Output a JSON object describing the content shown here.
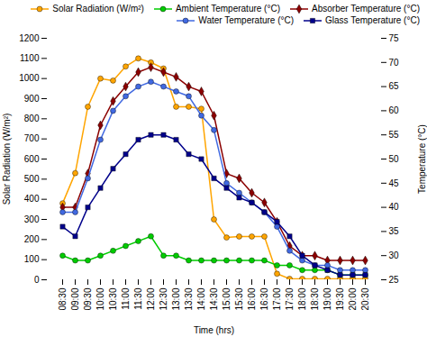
{
  "chart_data": {
    "type": "line",
    "categories": [
      "08:30",
      "09:00",
      "09:30",
      "10:00",
      "10:30",
      "11:00",
      "11:30",
      "12:00",
      "12:30",
      "13:00",
      "13:30",
      "14:00",
      "14:30",
      "15:00",
      "15:30",
      "16:00",
      "16:30",
      "17:00",
      "17:30",
      "18:00",
      "18:30",
      "19:00",
      "19:30",
      "20:00",
      "20:30"
    ],
    "series": [
      {
        "name": "Solar Radiation (W/m²)",
        "color": "#FFA500",
        "marker": "circle",
        "values": [
          380,
          530,
          860,
          1000,
          990,
          1060,
          1100,
          1080,
          1050,
          860,
          860,
          850,
          300,
          210,
          215,
          215,
          215,
          30,
          5,
          5,
          5,
          5,
          5,
          5,
          5
        ]
      },
      {
        "name": "Ambient Temperature (°C)",
        "color": "#00CC00",
        "marker": "circle",
        "axis": "y2",
        "values": [
          30,
          29,
          29,
          30,
          31,
          32,
          33,
          34,
          30,
          30,
          29,
          29,
          29,
          29,
          29,
          29,
          29,
          28,
          28,
          27,
          27,
          27,
          26,
          26,
          26
        ]
      },
      {
        "name": "Absorber Temperature (°C)",
        "color": "#8B0000",
        "marker": "diamond",
        "axis": "y2",
        "values": [
          40,
          40,
          47,
          57,
          62,
          65,
          68,
          69,
          68,
          67,
          65,
          64,
          59,
          47,
          46,
          43,
          41,
          37,
          32,
          30,
          30,
          29,
          29,
          29,
          29
        ]
      },
      {
        "name": "Water Temperature (°C)",
        "color": "#4169E1",
        "marker": "circle",
        "axis": "y2",
        "values": [
          39,
          39,
          46,
          54,
          60,
          63,
          65,
          66,
          65,
          64,
          63,
          59,
          56,
          45,
          43,
          41,
          39,
          36,
          31,
          29,
          28,
          28,
          27,
          27,
          27
        ]
      },
      {
        "name": "Glass Temperature (°C)",
        "color": "#00008B",
        "marker": "square",
        "axis": "y2",
        "values": [
          36,
          34,
          40,
          44,
          48,
          51,
          54,
          55,
          55,
          54,
          51,
          50,
          46,
          44,
          42,
          41,
          39,
          37,
          34,
          30,
          28,
          27,
          26,
          26,
          26
        ]
      }
    ],
    "xlabel": "Time (hrs)",
    "ylabel": "Solar Radiation (W/m²)",
    "y2label": "Temperature (°C)",
    "ylim": [
      0,
      1200
    ],
    "yticks": [
      0,
      100,
      200,
      300,
      400,
      500,
      600,
      700,
      800,
      900,
      1000,
      1100,
      1200
    ],
    "y2lim": [
      25,
      75
    ],
    "y2ticks": [
      25,
      30,
      35,
      40,
      45,
      50,
      55,
      60,
      65,
      70,
      75
    ],
    "legend": "upper right",
    "grid": false
  }
}
